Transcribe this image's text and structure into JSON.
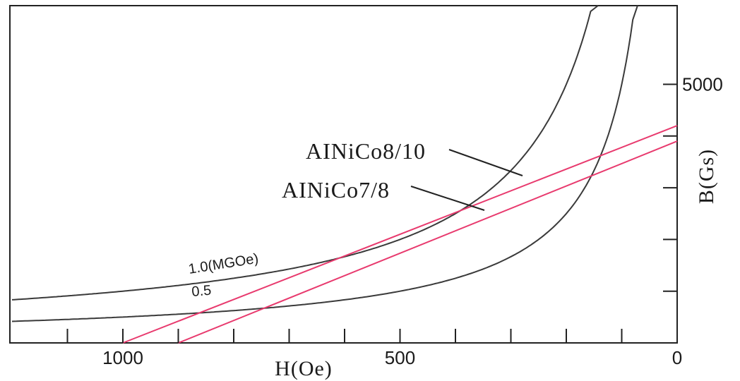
{
  "chart_data": {
    "type": "line",
    "xlabel": "H(Oe)",
    "ylabel": "B(Gs)",
    "xlim": [
      1200,
      0
    ],
    "ylim": [
      0,
      7000
    ],
    "x_ticks": [
      {
        "value": 1000,
        "label": "1000"
      },
      {
        "value": 500,
        "label": "500"
      },
      {
        "value": 0,
        "label": "0"
      }
    ],
    "x_minor_ticks": [
      1100,
      900,
      800,
      700,
      600,
      400,
      300,
      200,
      100
    ],
    "y_ticks": [
      {
        "value": 5000,
        "label": "5000"
      }
    ],
    "y_minor_ticks": [
      1000,
      2000,
      3000,
      4000
    ],
    "grid": false,
    "energy_curves": [
      {
        "label": "1.0(MGOe)",
        "bh_product_mgoe": 1.0,
        "color": "#3a3a3a"
      },
      {
        "label": "0.5",
        "bh_product_mgoe": 0.5,
        "color": "#3a3a3a"
      }
    ],
    "series": [
      {
        "name": "AINiCo8/10",
        "color": "#e83a6e",
        "x": [
          1000,
          0
        ],
        "y": [
          0,
          4200
        ]
      },
      {
        "name": "AINiCo7/8",
        "color": "#e83a6e",
        "x": [
          900,
          0
        ],
        "y": [
          0,
          3900
        ]
      }
    ]
  }
}
